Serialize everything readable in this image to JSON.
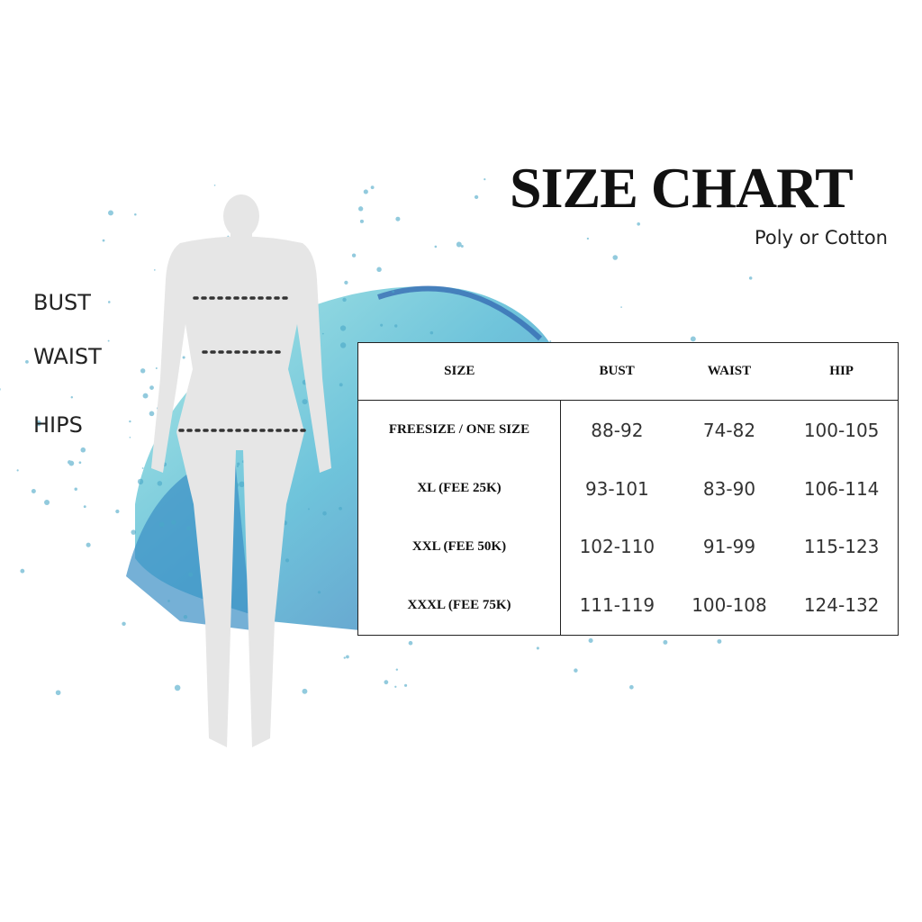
{
  "header": {
    "title": "SIZE CHART",
    "subtitle": "Poly or Cotton"
  },
  "figure": {
    "labels": [
      "BUST",
      "WAIST",
      "HIPS"
    ],
    "accent_colors": [
      "#3aa7c9",
      "#7fd3d8",
      "#2e6fb6"
    ],
    "silhouette_color": "#e6e6e6"
  },
  "table": {
    "headers": [
      "SIZE",
      "BUST",
      "WAIST",
      "HIP"
    ],
    "rows": [
      [
        "FREESIZE / ONE SIZE",
        "88-92",
        "74-82",
        "100-105"
      ],
      [
        "XL (FEE 25K)",
        "93-101",
        "83-90",
        "106-114"
      ],
      [
        "XXL (FEE 50K)",
        "102-110",
        "91-99",
        "115-123"
      ],
      [
        "XXXL (FEE 75K)",
        "111-119",
        "100-108",
        "124-132"
      ]
    ]
  }
}
